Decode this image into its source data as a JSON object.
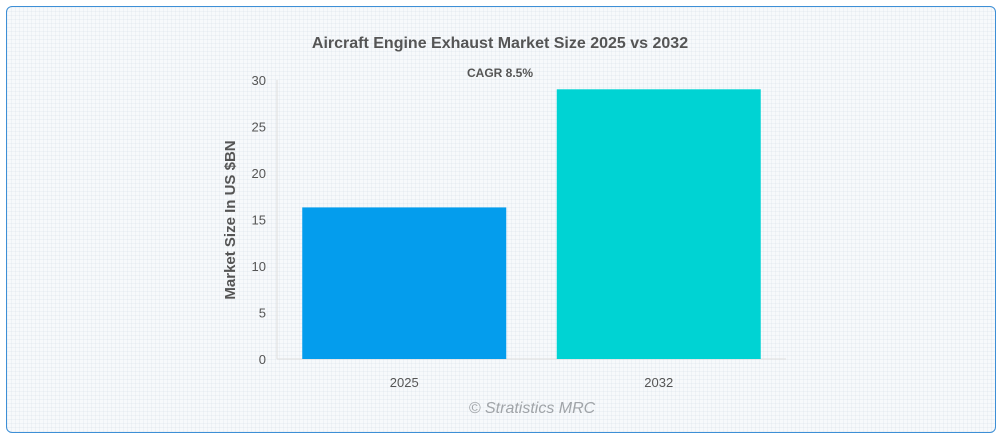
{
  "chart_data": {
    "type": "bar",
    "title": "Aircraft Engine Exhaust Market Size 2025 vs 2032",
    "subtitle": "CAGR 8.5%",
    "categories": [
      "2025",
      "2032"
    ],
    "values": [
      16.3,
      29.0
    ],
    "colors": [
      "#049ded",
      "#00d3d3"
    ],
    "xlabel": "",
    "ylabel": "Market Size In US $BN",
    "ylim": [
      0,
      30
    ],
    "yticks": [
      0,
      5,
      10,
      15,
      20,
      25,
      30
    ],
    "grid": false,
    "legend": "none"
  },
  "watermark": "© Stratistics MRC"
}
